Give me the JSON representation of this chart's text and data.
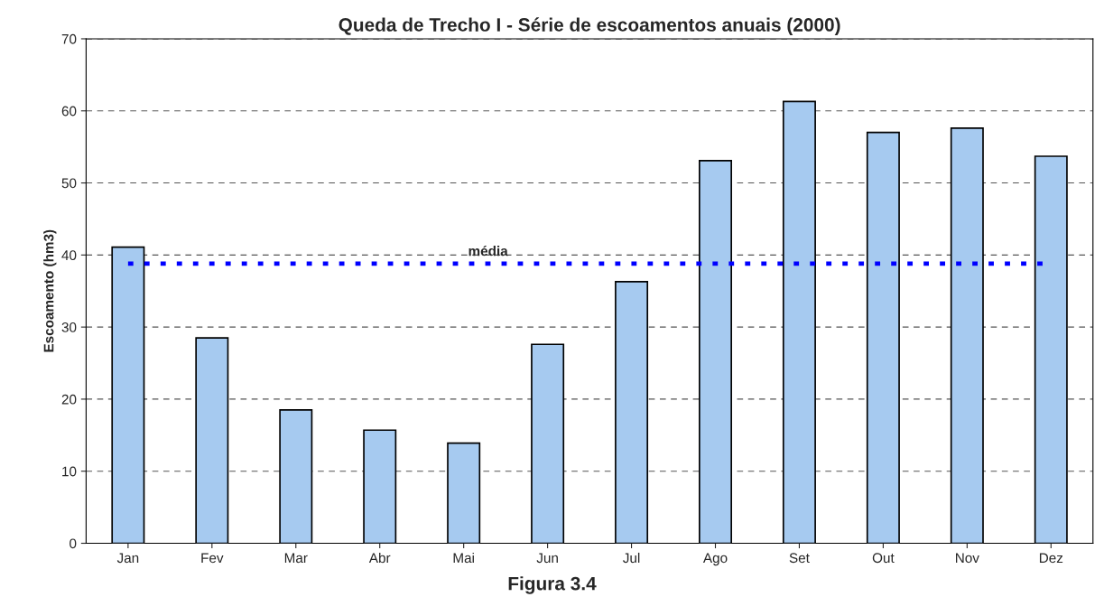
{
  "chart_data": {
    "type": "bar",
    "title": "Queda de Trecho I - Série de escoamentos anuais (2000)",
    "ylabel": "Escoamento (hm3)",
    "categories": [
      "Jan",
      "Fev",
      "Mar",
      "Abr",
      "Mai",
      "Jun",
      "Jul",
      "Ago",
      "Set",
      "Out",
      "Nov",
      "Dez"
    ],
    "values": [
      41.1,
      28.5,
      18.5,
      15.7,
      13.9,
      27.6,
      36.3,
      53.1,
      61.3,
      57.0,
      57.6,
      53.7
    ],
    "color": "#a6caf0",
    "ylim": [
      0,
      70
    ],
    "yticks": [
      0,
      10,
      20,
      30,
      40,
      50,
      60,
      70
    ],
    "grid": "y",
    "ref_lines": [
      {
        "axis": "y",
        "value": 38.8,
        "label": "média",
        "color": "#0000ff",
        "line_style": "dotted"
      }
    ],
    "annotations": [
      "Figura 3.4"
    ]
  }
}
